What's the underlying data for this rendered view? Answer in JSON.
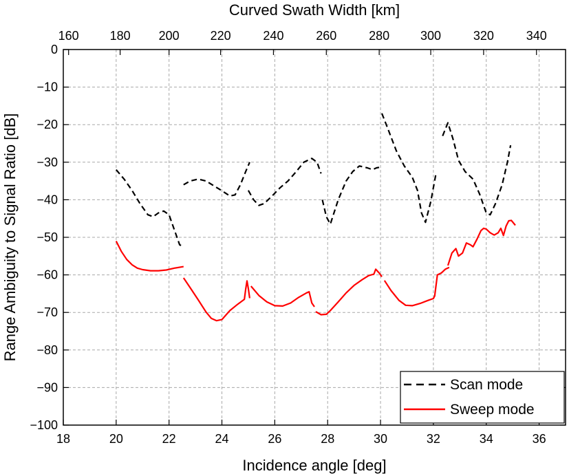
{
  "chart_data": {
    "type": "line",
    "xlabel": "Incidence angle [deg]",
    "x2label": "Curved Swath Width [km]",
    "ylabel": "Range Ambiguity to Signal Ratio [dB]",
    "xlim": [
      18,
      37
    ],
    "ylim": [
      -100,
      0
    ],
    "x_ticks": [
      18,
      20,
      22,
      24,
      26,
      28,
      30,
      32,
      34,
      36
    ],
    "y_ticks": [
      0,
      -10,
      -20,
      -30,
      -40,
      -50,
      -60,
      -70,
      -80,
      -90,
      -100
    ],
    "x2_ticks": [
      160,
      180,
      200,
      220,
      240,
      260,
      280,
      300,
      320,
      340
    ],
    "x2_tick_positions": [
      18.2,
      20.15,
      22.0,
      23.95,
      25.95,
      27.95,
      29.95,
      31.9,
      33.9,
      35.9
    ],
    "grid": true,
    "legend_position": "bottom-right",
    "series": [
      {
        "name": "Scan mode",
        "color": "#000000",
        "style": "dashed",
        "segments": [
          [
            [
              20.0,
              -32
            ],
            [
              20.3,
              -34.5
            ],
            [
              20.6,
              -37.5
            ],
            [
              20.9,
              -41
            ],
            [
              21.2,
              -44
            ],
            [
              21.4,
              -44.5
            ],
            [
              21.6,
              -43.5
            ],
            [
              21.8,
              -43
            ],
            [
              22.0,
              -44
            ],
            [
              22.2,
              -48
            ],
            [
              22.4,
              -52
            ],
            [
              22.55,
              -52.5
            ]
          ],
          [
            [
              22.55,
              -36
            ],
            [
              22.8,
              -35
            ],
            [
              23.1,
              -34.5
            ],
            [
              23.4,
              -35
            ],
            [
              23.7,
              -36.3
            ],
            [
              24.0,
              -37.6
            ],
            [
              24.3,
              -39
            ],
            [
              24.5,
              -38.7
            ],
            [
              24.7,
              -36
            ],
            [
              24.9,
              -32.5
            ],
            [
              25.05,
              -30
            ]
          ],
          [
            [
              25.0,
              -37.5
            ],
            [
              25.2,
              -40
            ],
            [
              25.4,
              -41.5
            ],
            [
              25.6,
              -41
            ],
            [
              25.9,
              -39
            ],
            [
              26.2,
              -36.8
            ],
            [
              26.5,
              -35
            ],
            [
              26.8,
              -32.6
            ],
            [
              27.1,
              -30
            ],
            [
              27.4,
              -29
            ],
            [
              27.6,
              -30
            ],
            [
              27.75,
              -33
            ]
          ],
          [
            [
              27.8,
              -40
            ],
            [
              27.95,
              -44.5
            ],
            [
              28.1,
              -46.5
            ],
            [
              28.4,
              -40
            ],
            [
              28.7,
              -35
            ],
            [
              28.95,
              -32.5
            ],
            [
              29.2,
              -31
            ],
            [
              29.5,
              -31.5
            ],
            [
              29.7,
              -32
            ],
            [
              29.85,
              -31.5
            ],
            [
              30.0,
              -31.3
            ]
          ],
          [
            [
              30.05,
              -17
            ],
            [
              30.3,
              -21.5
            ],
            [
              30.6,
              -27
            ],
            [
              30.9,
              -31
            ],
            [
              31.2,
              -34
            ],
            [
              31.4,
              -37.5
            ],
            [
              31.55,
              -43.5
            ],
            [
              31.7,
              -46
            ],
            [
              31.9,
              -40.5
            ],
            [
              32.1,
              -33
            ]
          ],
          [
            [
              32.35,
              -23
            ],
            [
              32.55,
              -19.5
            ],
            [
              32.75,
              -24
            ],
            [
              32.95,
              -29.5
            ],
            [
              33.2,
              -32.5
            ],
            [
              33.5,
              -34.5
            ],
            [
              33.75,
              -38.5
            ],
            [
              34.0,
              -43.5
            ],
            [
              34.15,
              -44
            ],
            [
              34.35,
              -41
            ],
            [
              34.6,
              -36
            ],
            [
              34.8,
              -30
            ],
            [
              34.92,
              -25.5
            ]
          ]
        ]
      },
      {
        "name": "Sweep mode",
        "color": "#ff0000",
        "style": "solid",
        "segments": [
          [
            [
              20.0,
              -51
            ],
            [
              20.2,
              -53.8
            ],
            [
              20.4,
              -55.9
            ],
            [
              20.6,
              -57.3
            ],
            [
              20.8,
              -58.2
            ],
            [
              21.0,
              -58.6
            ],
            [
              21.3,
              -58.9
            ],
            [
              21.6,
              -58.9
            ],
            [
              21.9,
              -58.7
            ],
            [
              22.2,
              -58.2
            ],
            [
              22.55,
              -57.8
            ]
          ],
          [
            [
              22.55,
              -60.8
            ],
            [
              22.8,
              -63.4
            ],
            [
              23.1,
              -66.6
            ],
            [
              23.4,
              -69.9
            ],
            [
              23.6,
              -71.6
            ],
            [
              23.8,
              -72.2
            ],
            [
              24.0,
              -71.9
            ],
            [
              24.3,
              -69.5
            ],
            [
              24.6,
              -67.8
            ],
            [
              24.85,
              -66.5
            ],
            [
              24.9,
              -63.8
            ],
            [
              24.95,
              -61.6
            ],
            [
              25.0,
              -63.6
            ],
            [
              25.05,
              -66.2
            ]
          ],
          [
            [
              25.1,
              -63
            ],
            [
              25.4,
              -65.5
            ],
            [
              25.7,
              -67.2
            ],
            [
              26.0,
              -68.2
            ],
            [
              26.3,
              -68.3
            ],
            [
              26.6,
              -67.5
            ],
            [
              26.9,
              -66
            ],
            [
              27.2,
              -64.8
            ],
            [
              27.3,
              -64.5
            ],
            [
              27.4,
              -67.5
            ],
            [
              27.5,
              -68.5
            ]
          ],
          [
            [
              27.55,
              -69.8
            ],
            [
              27.75,
              -70.6
            ],
            [
              27.95,
              -70.5
            ],
            [
              28.1,
              -69.5
            ],
            [
              28.4,
              -67.2
            ],
            [
              28.7,
              -64.8
            ],
            [
              29.0,
              -62.8
            ],
            [
              29.3,
              -61.3
            ],
            [
              29.55,
              -60.2
            ],
            [
              29.75,
              -59.8
            ],
            [
              29.82,
              -58.5
            ],
            [
              29.95,
              -59.5
            ],
            [
              30.05,
              -60.5
            ]
          ],
          [
            [
              30.15,
              -61.5
            ],
            [
              30.4,
              -64.2
            ],
            [
              30.7,
              -66.8
            ],
            [
              30.95,
              -68.1
            ],
            [
              31.2,
              -68.2
            ],
            [
              31.5,
              -67.6
            ],
            [
              31.8,
              -66.8
            ],
            [
              32.0,
              -66.3
            ],
            [
              32.05,
              -65.6
            ],
            [
              32.15,
              -60
            ],
            [
              32.3,
              -59.5
            ],
            [
              32.45,
              -58.5
            ],
            [
              32.6,
              -58
            ]
          ],
          [
            [
              32.55,
              -57.5
            ],
            [
              32.7,
              -54.2
            ],
            [
              32.85,
              -53
            ],
            [
              32.95,
              -55
            ],
            [
              33.1,
              -54.2
            ],
            [
              33.25,
              -51.5
            ],
            [
              33.4,
              -52
            ],
            [
              33.5,
              -52.5
            ],
            [
              33.65,
              -50.5
            ],
            [
              33.8,
              -48.2
            ],
            [
              33.9,
              -47.6
            ],
            [
              34.0,
              -47.8
            ],
            [
              34.15,
              -48.8
            ],
            [
              34.3,
              -49.4
            ],
            [
              34.45,
              -48.8
            ],
            [
              34.55,
              -47.6
            ],
            [
              34.65,
              -49.5
            ],
            [
              34.75,
              -47
            ],
            [
              34.85,
              -45.6
            ],
            [
              34.95,
              -45.5
            ],
            [
              35.1,
              -46.8
            ]
          ]
        ]
      }
    ]
  }
}
